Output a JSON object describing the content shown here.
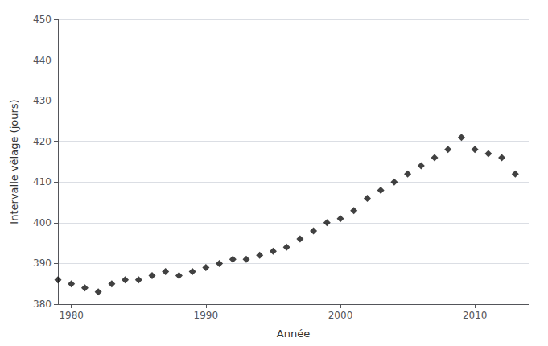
{
  "chart_data": {
    "type": "scatter",
    "xlabel": "Année",
    "ylabel": "Intervalle vêlage (jours)",
    "x": [
      1979,
      1980,
      1981,
      1982,
      1983,
      1984,
      1985,
      1986,
      1987,
      1988,
      1989,
      1990,
      1991,
      1992,
      1993,
      1994,
      1995,
      1996,
      1997,
      1998,
      1999,
      2000,
      2001,
      2002,
      2003,
      2004,
      2005,
      2006,
      2007,
      2008,
      2009,
      2010,
      2011,
      2012,
      2013
    ],
    "values": [
      386,
      385,
      384,
      383,
      385,
      386,
      386,
      387,
      388,
      387,
      388,
      389,
      390,
      391,
      391,
      392,
      393,
      394,
      396,
      398,
      400,
      401,
      403,
      406,
      408,
      410,
      412,
      414,
      416,
      418,
      421,
      418,
      417,
      416,
      412
    ],
    "color": "#111111",
    "marker": "diamond",
    "xlim": [
      1979,
      2014
    ],
    "xticks": [
      1980,
      1990,
      2000,
      2010
    ],
    "ylim": [
      380,
      450
    ],
    "yticks": [
      380,
      390,
      400,
      410,
      420,
      430,
      440,
      450
    ],
    "grid": true
  }
}
